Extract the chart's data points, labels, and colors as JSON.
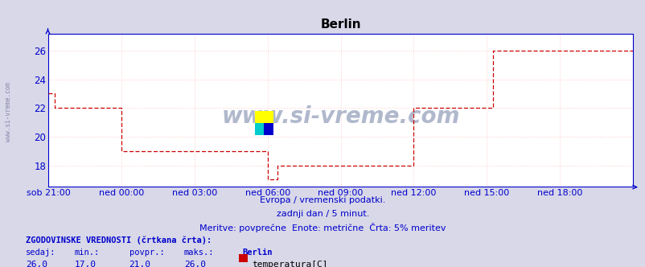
{
  "title": "Berlin",
  "subtitle_lines": [
    "Evropa / vremenski podatki.",
    "zadnji dan / 5 minut.",
    "Meritve: povprečne  Enote: metrične  Črta: 5% meritev"
  ],
  "xlabel_ticks": [
    "sob 21:00",
    "ned 00:00",
    "ned 03:00",
    "ned 06:00",
    "ned 09:00",
    "ned 12:00",
    "ned 15:00",
    "ned 18:00"
  ],
  "ylabel_ticks": [
    18,
    20,
    22,
    24,
    26
  ],
  "ylim": [
    16.5,
    27.2
  ],
  "xlim": [
    0,
    288
  ],
  "tick_positions_x": [
    0,
    36,
    72,
    108,
    144,
    180,
    216,
    252
  ],
  "background_color": "#d8d8e8",
  "plot_bg_color": "#ffffff",
  "grid_color": "#ffcccc",
  "line_color": "#cc0000",
  "axis_color": "#0000cc",
  "watermark_text": "www.si-vreme.com",
  "left_text": "www.si-vreme.com",
  "stats_title": "ZGODOVINSKE VREDNOSTI (črtkana črta):",
  "stats_headers": [
    "sedaj:",
    "min.:",
    "povpr.:",
    "maks.:",
    "Berlin"
  ],
  "stats_values": [
    "26,0",
    "17,0",
    "21,0",
    "26,0"
  ],
  "legend_label": "temperatura[C]",
  "legend_color": "#cc0000",
  "segments": [
    {
      "x_start": 0,
      "x_end": 3,
      "y": 23.0
    },
    {
      "x_start": 3,
      "x_end": 36,
      "y": 22.0
    },
    {
      "x_start": 36,
      "x_end": 108,
      "y": 19.0
    },
    {
      "x_start": 108,
      "x_end": 113,
      "y": 17.0
    },
    {
      "x_start": 113,
      "x_end": 180,
      "y": 18.0
    },
    {
      "x_start": 180,
      "x_end": 219,
      "y": 22.0
    },
    {
      "x_start": 219,
      "x_end": 288,
      "y": 26.0
    }
  ]
}
